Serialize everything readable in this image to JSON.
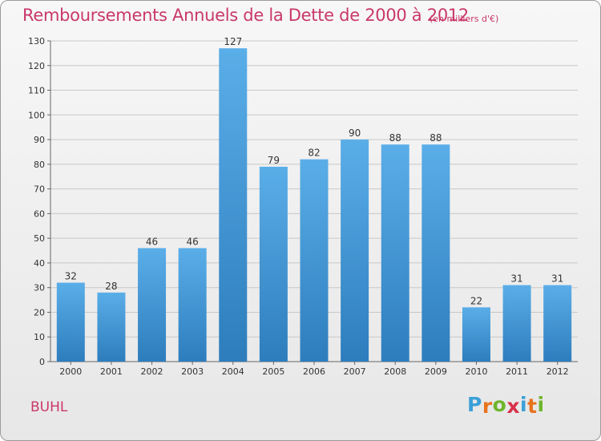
{
  "chart_data": {
    "type": "bar",
    "title": "Remboursements Annuels de la Dette de 2000 à 2012",
    "subtitle": "(en milliers d'€)",
    "categories": [
      "2000",
      "2001",
      "2002",
      "2003",
      "2004",
      "2005",
      "2006",
      "2007",
      "2008",
      "2009",
      "2010",
      "2011",
      "2012"
    ],
    "values": [
      32,
      28,
      46,
      46,
      127,
      79,
      82,
      90,
      88,
      88,
      22,
      31,
      31
    ],
    "xlabel": "",
    "ylabel": "",
    "ylim": [
      0,
      130
    ],
    "yticks": [
      0,
      10,
      20,
      30,
      40,
      50,
      60,
      70,
      80,
      90,
      100,
      110,
      120,
      130
    ],
    "grid": true,
    "data_labels": true,
    "colors": {
      "bar_top": "#5aaee8",
      "bar_bottom": "#2d7dbd",
      "title": "#c9386b"
    }
  },
  "footer": {
    "town": "BUHL",
    "logo_letters": [
      "P",
      "r",
      "o",
      "x",
      "i",
      "t",
      "i"
    ],
    "logo_colors": [
      "#3aa0d8",
      "#e8731f",
      "#6fb52c",
      "#d8314b",
      "#3aa0d8",
      "#e8731f",
      "#6fb52c"
    ]
  }
}
